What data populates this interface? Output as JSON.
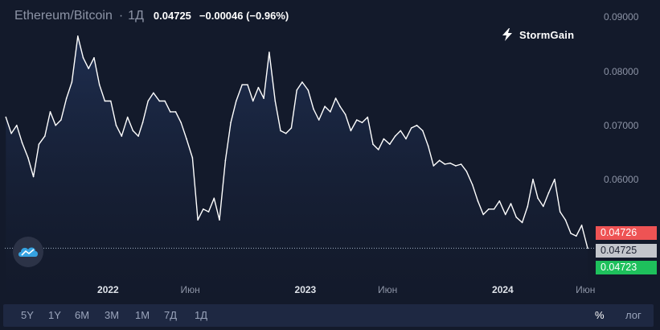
{
  "header": {
    "symbol": "Ethereum/Bitcoin",
    "separator": "·",
    "interval": "1Д",
    "last_price": "0.04725",
    "change": "−0.00046 (−0.96%)"
  },
  "brand": {
    "name": "StormGain",
    "icon": "lightning-logo-icon"
  },
  "price_tags": {
    "high": "0.04726",
    "last": "0.04725",
    "low": "0.04723"
  },
  "toolbar": {
    "timeframes": [
      "5Y",
      "1Y",
      "6M",
      "3M",
      "1M",
      "7Д",
      "1Д"
    ],
    "percent_label": "%",
    "log_label": "лог"
  },
  "floating_button": {
    "icon": "cloud-logo-icon"
  },
  "colors": {
    "background": "#131a2b",
    "line": "#ffffff",
    "area_fill": "#1c2a49",
    "high_tag": "#ee5354",
    "last_tag": "#c3c6cc",
    "low_tag": "#1ec05c",
    "toolbar_bg": "#1e2842",
    "brand_accent": "#36a2e0"
  },
  "chart_data": {
    "type": "area",
    "title": "Ethereum/Bitcoin",
    "xlabel": "",
    "ylabel": "",
    "y_ticks": [
      0.06,
      0.07,
      0.08,
      0.09
    ],
    "y_tick_labels": [
      "0.06000",
      "0.07000",
      "0.08000",
      "0.09000"
    ],
    "x_ticks": [
      "2021-12-31",
      "2022-06-01",
      "2022-12-31",
      "2023-06-01",
      "2023-12-31",
      "2024-06-01"
    ],
    "x_tick_labels": [
      "2022",
      "Июн",
      "2023",
      "Июн",
      "2024",
      "Июн"
    ],
    "x_tick_bold": [
      true,
      false,
      true,
      false,
      true,
      false
    ],
    "ylim": [
      0.0424,
      0.0914
    ],
    "xlim": [
      "2021-06-23",
      "2024-06-11"
    ],
    "grid": false,
    "last_price_line": 0.04725,
    "series": [
      {
        "x": [
          "2021-06-25",
          "2021-07-05",
          "2021-07-15",
          "2021-07-25",
          "2021-08-05",
          "2021-08-15",
          "2021-08-25",
          "2021-09-05",
          "2021-09-15",
          "2021-09-25",
          "2021-10-05",
          "2021-10-15",
          "2021-10-25",
          "2021-11-05",
          "2021-11-15",
          "2021-11-25",
          "2021-12-05",
          "2021-12-15",
          "2021-12-25",
          "2022-01-05",
          "2022-01-15",
          "2022-01-25",
          "2022-02-05",
          "2022-02-15",
          "2022-02-25",
          "2022-03-05",
          "2022-03-15",
          "2022-03-25",
          "2022-04-05",
          "2022-04-15",
          "2022-04-25",
          "2022-05-05",
          "2022-05-15",
          "2022-05-25",
          "2022-06-05",
          "2022-06-15",
          "2022-06-25",
          "2022-07-05",
          "2022-07-15",
          "2022-07-25",
          "2022-08-05",
          "2022-08-15",
          "2022-08-25",
          "2022-09-05",
          "2022-09-15",
          "2022-09-25",
          "2022-10-05",
          "2022-10-15",
          "2022-10-25",
          "2022-11-05",
          "2022-11-15",
          "2022-11-25",
          "2022-12-05",
          "2022-12-15",
          "2022-12-25",
          "2023-01-05",
          "2023-01-15",
          "2023-01-25",
          "2023-02-05",
          "2023-02-15",
          "2023-02-25",
          "2023-03-05",
          "2023-03-15",
          "2023-03-25",
          "2023-04-05",
          "2023-04-15",
          "2023-04-25",
          "2023-05-05",
          "2023-05-15",
          "2023-05-25",
          "2023-06-05",
          "2023-06-15",
          "2023-06-25",
          "2023-07-05",
          "2023-07-15",
          "2023-07-25",
          "2023-08-05",
          "2023-08-15",
          "2023-08-25",
          "2023-09-05",
          "2023-09-15",
          "2023-09-25",
          "2023-10-05",
          "2023-10-15",
          "2023-10-25",
          "2023-11-05",
          "2023-11-15",
          "2023-11-25",
          "2023-12-05",
          "2023-12-15",
          "2023-12-25",
          "2024-01-05",
          "2024-01-15",
          "2024-01-25",
          "2024-02-05",
          "2024-02-15",
          "2024-02-25",
          "2024-03-05",
          "2024-03-15",
          "2024-03-25",
          "2024-04-05",
          "2024-04-15",
          "2024-04-25",
          "2024-05-05",
          "2024-05-15",
          "2024-05-25",
          "2024-06-05"
        ],
        "values": [
          0.0715,
          0.0685,
          0.07,
          0.0668,
          0.064,
          0.0605,
          0.0665,
          0.068,
          0.0725,
          0.07,
          0.071,
          0.075,
          0.078,
          0.0865,
          0.0825,
          0.0805,
          0.0825,
          0.0775,
          0.0745,
          0.0745,
          0.07,
          0.068,
          0.0715,
          0.069,
          0.068,
          0.0705,
          0.0745,
          0.076,
          0.0745,
          0.0745,
          0.0725,
          0.0725,
          0.0705,
          0.0675,
          0.064,
          0.0525,
          0.0545,
          0.054,
          0.0565,
          0.0525,
          0.0635,
          0.0705,
          0.0745,
          0.0775,
          0.0775,
          0.0745,
          0.077,
          0.075,
          0.0835,
          0.0745,
          0.069,
          0.0685,
          0.0695,
          0.0765,
          0.078,
          0.0765,
          0.073,
          0.071,
          0.0735,
          0.0725,
          0.075,
          0.0735,
          0.072,
          0.069,
          0.071,
          0.0705,
          0.0715,
          0.0665,
          0.0655,
          0.0675,
          0.0665,
          0.068,
          0.069,
          0.0675,
          0.0695,
          0.07,
          0.069,
          0.0662,
          0.0625,
          0.0635,
          0.0628,
          0.063,
          0.0625,
          0.0628,
          0.0615,
          0.059,
          0.056,
          0.0535,
          0.0545,
          0.0545,
          0.056,
          0.0535,
          0.0555,
          0.053,
          0.052,
          0.055,
          0.06,
          0.0565,
          0.055,
          0.0575,
          0.06,
          0.054,
          0.0525,
          0.05,
          0.0495,
          0.0515,
          0.04725
        ]
      }
    ]
  }
}
